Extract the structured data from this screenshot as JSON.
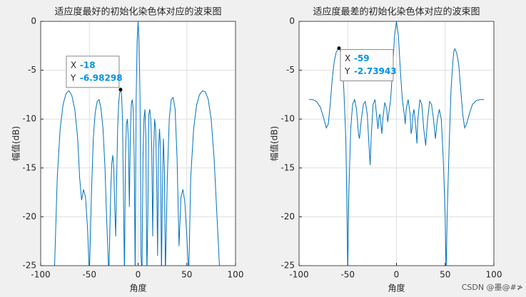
{
  "chart_data": [
    {
      "type": "line",
      "title": "适应度最好的初始化染色体对应的波束图",
      "xlabel": "角度",
      "ylabel": "幅值(dB)",
      "x": [
        -86,
        -83,
        -80,
        -77,
        -74,
        -71,
        -68,
        -65,
        -62,
        -60,
        -58,
        -56,
        -54,
        -52,
        -50,
        -48,
        -46,
        -44,
        -42,
        -40,
        -38,
        -36,
        -34,
        -32,
        -30,
        -28,
        -27,
        -26,
        -25,
        -24,
        -23,
        -22,
        -21,
        -20,
        -19,
        -18,
        -17,
        -16,
        -15,
        -14,
        -13,
        -12,
        -11,
        -10,
        -9,
        -8,
        -7,
        -6,
        -5,
        -4,
        -3,
        -2,
        -1,
        0,
        1,
        2,
        3,
        4,
        5,
        6,
        7,
        8,
        9,
        10,
        11,
        12,
        13,
        14,
        15,
        16,
        17,
        18,
        19,
        20,
        21,
        22,
        23,
        24,
        25,
        26,
        27,
        28,
        30,
        32,
        34,
        36,
        38,
        40,
        42,
        44,
        46,
        48,
        50,
        52,
        54,
        57,
        60,
        63,
        66,
        69,
        72,
        75,
        78,
        81,
        84
      ],
      "series": [
        {
          "color": "#0072bd",
          "values": [
            -26,
            -16,
            -11,
            -8.5,
            -7.4,
            -7.1,
            -7.6,
            -9,
            -12,
            -16,
            -18.3,
            -17.2,
            -18,
            -21,
            -26,
            -18,
            -12,
            -9.3,
            -8.2,
            -8,
            -9,
            -11,
            -15,
            -21,
            -26,
            -17,
            -14.5,
            -13.7,
            -15,
            -19,
            -22,
            -16,
            -11,
            -8.5,
            -7.3,
            -6.98298,
            -7.5,
            -10,
            -18,
            -26,
            -14,
            -10.5,
            -10,
            -12,
            -19,
            -12,
            -8.5,
            -8,
            -9,
            -14,
            -26,
            -8,
            -2,
            0,
            -2,
            -8,
            -24,
            -26,
            -14,
            -10,
            -9,
            -12,
            -26,
            -20,
            -9.5,
            -9,
            -10,
            -13,
            -22,
            -13,
            -10,
            -11,
            -16,
            -24,
            -13,
            -11,
            -13,
            -26,
            -17,
            -12,
            -15,
            -26,
            -16,
            -10,
            -8,
            -7.8,
            -9,
            -14,
            -23,
            -18,
            -17.2,
            -18.5,
            -22,
            -26,
            -16,
            -11,
            -8.6,
            -7.5,
            -7.1,
            -7.2,
            -8,
            -10,
            -14,
            -20,
            -26
          ]
        }
      ],
      "xlim": [
        -100,
        100
      ],
      "ylim": [
        -25,
        0
      ],
      "xticks": [
        -100,
        -50,
        0,
        50,
        100
      ],
      "yticks": [
        0,
        -5,
        -10,
        -15,
        -20,
        -25
      ],
      "grid": true,
      "datatip": {
        "x_label": "X",
        "y_label": "Y",
        "x": -18,
        "y": -6.98298
      }
    },
    {
      "type": "line",
      "title": "适应度最差的初始化染色体对应的波束图",
      "xlabel": "角度",
      "ylabel": "幅值(dB)",
      "x": [
        -90,
        -86,
        -82,
        -78,
        -75,
        -72,
        -70,
        -68,
        -66,
        -64,
        -62,
        -60,
        -59,
        -58,
        -56,
        -54,
        -52,
        -51,
        -50,
        -49,
        -47,
        -45,
        -43,
        -41,
        -39,
        -38,
        -36,
        -34,
        -32,
        -30,
        -28,
        -27,
        -26,
        -24,
        -22,
        -20,
        -19,
        -18,
        -17,
        -16,
        -15,
        -14,
        -12,
        -10,
        -9,
        -8,
        -6,
        -4,
        -2,
        0,
        2,
        4,
        6,
        8,
        9,
        10,
        12,
        14,
        15,
        16,
        17,
        18,
        19,
        20,
        21,
        22,
        24,
        26,
        28,
        30,
        32,
        34,
        36,
        38,
        40,
        42,
        44,
        46,
        48,
        50,
        51,
        52,
        54,
        56,
        58,
        59,
        60,
        62,
        64,
        66,
        68,
        70,
        72,
        75,
        78,
        82,
        86,
        90
      ],
      "series": [
        {
          "color": "#0072bd",
          "values": [
            -8,
            -8,
            -8.2,
            -8.8,
            -9.8,
            -10.9,
            -10.5,
            -8.5,
            -6,
            -4.2,
            -3.2,
            -2.8,
            -2.73943,
            -2.9,
            -4,
            -7,
            -12,
            -18,
            -26,
            -18,
            -11,
            -8.5,
            -8,
            -9,
            -11.5,
            -12,
            -10,
            -8.5,
            -8.2,
            -9.5,
            -13,
            -14.7,
            -12,
            -8.5,
            -8,
            -10,
            -11,
            -9.8,
            -9.5,
            -10.5,
            -11.5,
            -10,
            -8.3,
            -9,
            -10.3,
            -9.5,
            -8,
            -5,
            -1.5,
            0,
            -1.5,
            -5,
            -8,
            -9.5,
            -10.5,
            -9,
            -8,
            -9.5,
            -11.5,
            -11,
            -9.5,
            -9,
            -10,
            -11,
            -12.5,
            -10,
            -8,
            -8.5,
            -11,
            -12.7,
            -10,
            -8.2,
            -8.5,
            -10,
            -12,
            -10,
            -9,
            -10,
            -14,
            -20,
            -26,
            -20,
            -13,
            -7,
            -4,
            -3,
            -2.8,
            -3.3,
            -4.5,
            -7,
            -9.5,
            -10.9,
            -10.5,
            -9.4,
            -8.5,
            -8.1,
            -8,
            -8
          ]
        }
      ],
      "xlim": [
        -100,
        100
      ],
      "ylim": [
        -25,
        0
      ],
      "xticks": [
        -100,
        -50,
        0,
        50,
        100
      ],
      "yticks": [
        0,
        -5,
        -10,
        -15,
        -20,
        -25
      ],
      "grid": true,
      "datatip": {
        "x_label": "X",
        "y_label": "Y",
        "x": -59,
        "y": -2.73943
      }
    }
  ],
  "watermark": "CSDN @墨@#≯"
}
